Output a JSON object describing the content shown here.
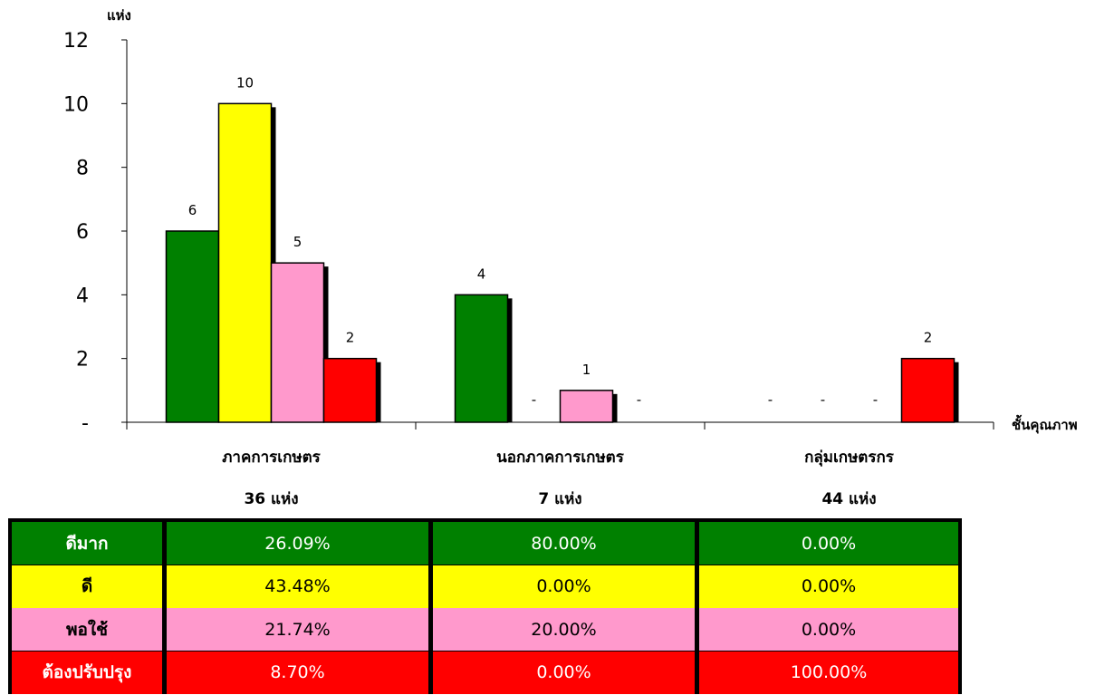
{
  "chart_data": {
    "type": "bar",
    "categories": [
      "ภาคการเกษตร",
      "นอกภาคการเกษตร",
      "กลุ่มเกษตรกร"
    ],
    "category_counts": [
      "36  แห่ง",
      "7  แห่ง",
      "44  แห่ง"
    ],
    "series": [
      {
        "name": "ดีมาก",
        "color": "#008000",
        "values": [
          6,
          4,
          0
        ]
      },
      {
        "name": "ดี",
        "color": "#ffff00",
        "values": [
          10,
          0,
          0
        ]
      },
      {
        "name": "พอใช้",
        "color": "#ff99cc",
        "values": [
          5,
          1,
          0
        ]
      },
      {
        "name": "ต้องปรับปรุง",
        "color": "#ff0000",
        "values": [
          2,
          0,
          2
        ]
      }
    ],
    "value_labels": [
      [
        "6",
        "4",
        "-"
      ],
      [
        "10",
        "-",
        "-"
      ],
      [
        "5",
        "1",
        "-"
      ],
      [
        "2",
        "-",
        "2"
      ]
    ],
    "ylabel": "แห่ง",
    "xlabel": "ชั้นคุณภาพ",
    "ylim": [
      0,
      12
    ],
    "yticks": [
      "-",
      "2",
      "4",
      "6",
      "8",
      "10",
      "12"
    ],
    "grid": false,
    "shadow_color": "#000000"
  },
  "table": {
    "rows": [
      {
        "label": "ดีมาก",
        "bg": "#008000",
        "fg": "#ffffff",
        "values": [
          "26.09%",
          "80.00%",
          "0.00%"
        ]
      },
      {
        "label": "ดี",
        "bg": "#ffff00",
        "fg": "#000000",
        "values": [
          "43.48%",
          "0.00%",
          "0.00%"
        ]
      },
      {
        "label": "พอใช้",
        "bg": "#ff99cc",
        "fg": "#000000",
        "values": [
          "21.74%",
          "20.00%",
          "0.00%"
        ]
      },
      {
        "label": "ต้องปรับปรุง",
        "bg": "#ff0000",
        "fg": "#ffffff",
        "values": [
          "8.70%",
          "0.00%",
          "100.00%"
        ]
      }
    ]
  }
}
